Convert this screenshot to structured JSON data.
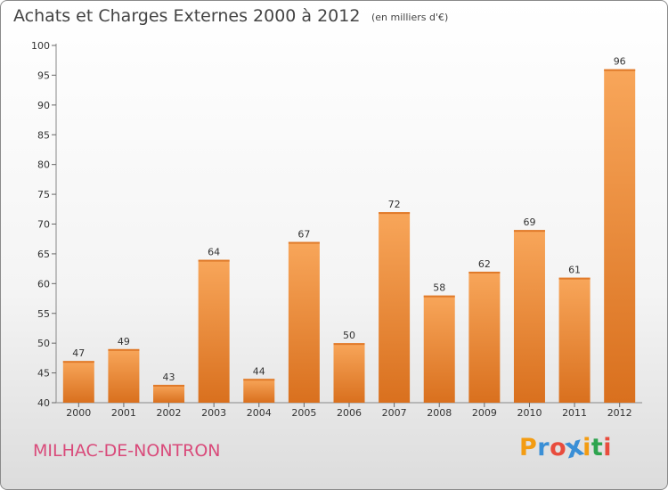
{
  "header": {
    "title": "Achats et Charges Externes 2000 à 2012",
    "unit_note": "(en milliers d'€)"
  },
  "footer": {
    "commune": "MILHAC-DE-NONTRON",
    "logo_text": "Proxiti",
    "logo_letter_colors": [
      "#f39c12",
      "#3a8fd6",
      "#e84c3d",
      "#3a8fd6",
      "#f39c12",
      "#2ea44f",
      "#e84c3d"
    ]
  },
  "colors": {
    "bar_light": "#f8a65a",
    "bar_dark": "#d9701e",
    "axis": "#888888",
    "grid_tick": "#666666",
    "title": "#444444",
    "commune": "#d94a7a"
  },
  "chart_data": {
    "type": "bar",
    "title": "Achats et Charges Externes 2000 à 2012",
    "xlabel": "",
    "ylabel": "",
    "categories": [
      "2000",
      "2001",
      "2002",
      "2003",
      "2004",
      "2005",
      "2006",
      "2007",
      "2008",
      "2009",
      "2010",
      "2011",
      "2012"
    ],
    "values": [
      47,
      49,
      43,
      64,
      44,
      67,
      50,
      72,
      58,
      62,
      69,
      61,
      96
    ],
    "ylim": [
      40,
      100
    ],
    "yticks": [
      40,
      45,
      50,
      55,
      60,
      65,
      70,
      75,
      80,
      85,
      90,
      95,
      100
    ],
    "grid": false,
    "legend": "none"
  }
}
